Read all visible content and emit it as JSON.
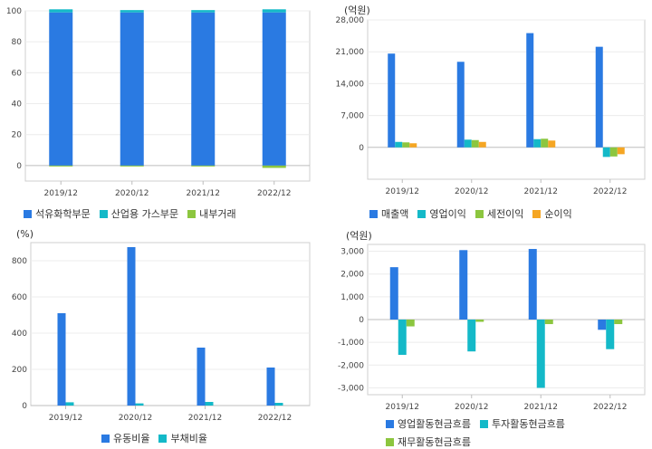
{
  "chart_data": [
    {
      "id": "c1",
      "type": "bar",
      "stacked": true,
      "unit": "",
      "categories": [
        "2019/12",
        "2020/12",
        "2021/12",
        "2022/12"
      ],
      "ylim": [
        -10,
        100
      ],
      "yticks": [
        0,
        20,
        40,
        60,
        80,
        100
      ],
      "legend_position": "bottom-left",
      "series": [
        {
          "name": "석유화학부문",
          "color": "#2a7ae2",
          "values": [
            99,
            99,
            99,
            99
          ]
        },
        {
          "name": "산업용 가스부문",
          "color": "#14b9c8",
          "values": [
            2,
            1.5,
            1.5,
            2
          ]
        },
        {
          "name": "내부거래",
          "color": "#8cc63f",
          "values": [
            -0.5,
            -0.5,
            -0.5,
            -1.5
          ]
        }
      ]
    },
    {
      "id": "c2",
      "type": "bar",
      "unit": "(억원)",
      "categories": [
        "2019/12",
        "2020/12",
        "2021/12",
        "2022/12"
      ],
      "ylim": [
        -7000,
        28000
      ],
      "yticks": [
        0,
        7000,
        14000,
        21000,
        28000
      ],
      "yticklabels": [
        "0",
        "7,000",
        "14,000",
        "21,000",
        "28,000"
      ],
      "legend_position": "bottom-left",
      "series": [
        {
          "name": "매출액",
          "color": "#2a7ae2",
          "values": [
            20600,
            18800,
            25100,
            22100
          ]
        },
        {
          "name": "영업이익",
          "color": "#14b9c8",
          "values": [
            1200,
            1700,
            1800,
            -2100
          ]
        },
        {
          "name": "세전이익",
          "color": "#8cc63f",
          "values": [
            1100,
            1600,
            1900,
            -2000
          ]
        },
        {
          "name": "순이익",
          "color": "#f5a623",
          "values": [
            900,
            1200,
            1500,
            -1500
          ]
        }
      ]
    },
    {
      "id": "c3",
      "type": "bar",
      "unit": "(%)",
      "categories": [
        "2019/12",
        "2020/12",
        "2021/12",
        "2022/12"
      ],
      "ylim": [
        0,
        900
      ],
      "yticks": [
        0,
        200,
        400,
        600,
        800
      ],
      "yticklabels": [
        "0",
        "200",
        "400",
        "600",
        "800"
      ],
      "legend_position": "bottom-center",
      "series": [
        {
          "name": "유동비율",
          "color": "#2a7ae2",
          "values": [
            510,
            875,
            320,
            210
          ]
        },
        {
          "name": "부채비율",
          "color": "#14b9c8",
          "values": [
            18,
            12,
            20,
            15
          ]
        }
      ]
    },
    {
      "id": "c4",
      "type": "bar",
      "unit": "(억원)",
      "categories": [
        "2019/12",
        "2020/12",
        "2021/12",
        "2022/12"
      ],
      "ylim": [
        -3300,
        3300
      ],
      "yticks": [
        -3000,
        -2000,
        -1000,
        0,
        1000,
        2000,
        3000
      ],
      "yticklabels": [
        "-3,000",
        "-2,000",
        "-1,000",
        "0",
        "1,000",
        "2,000",
        "3,000"
      ],
      "legend_position": "bottom-left",
      "series": [
        {
          "name": "영업활동현금흐름",
          "color": "#2a7ae2",
          "values": [
            2300,
            3050,
            3100,
            -450
          ]
        },
        {
          "name": "투자활동현금흐름",
          "color": "#14b9c8",
          "values": [
            -1550,
            -1400,
            -3000,
            -1300
          ]
        },
        {
          "name": "재무활동현금흐름",
          "color": "#8cc63f",
          "values": [
            -300,
            -100,
            -200,
            -200
          ]
        }
      ]
    }
  ]
}
